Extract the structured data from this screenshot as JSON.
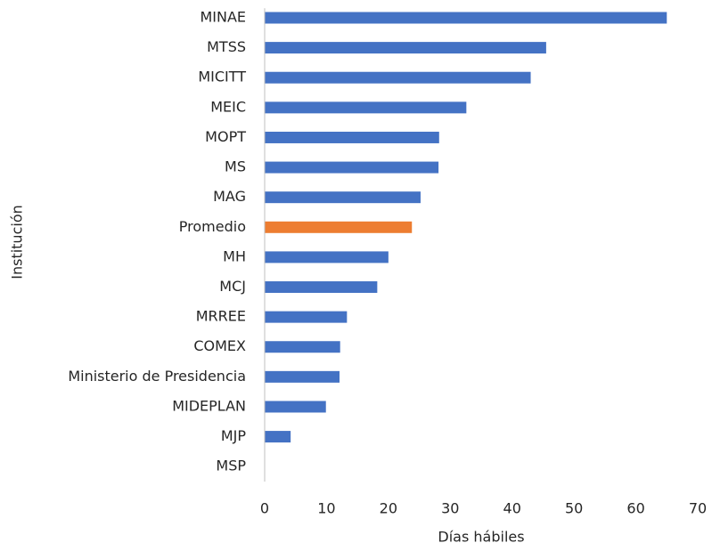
{
  "chart_data": {
    "type": "barh",
    "xlabel": "Días hábiles",
    "ylabel": "Institución",
    "categories": [
      "MINAE",
      "MTSS",
      "MICITT",
      "MEIC",
      "MOPT",
      "MS",
      "MAG",
      "Promedio",
      "MH",
      "MCJ",
      "MRREE",
      "COMEX",
      "Ministerio de Presidencia",
      "MIDEPLAN",
      "MJP",
      "MSP"
    ],
    "values": [
      65.0,
      45.5,
      43.0,
      32.6,
      28.2,
      28.1,
      25.2,
      23.8,
      20.0,
      18.2,
      13.3,
      12.2,
      12.1,
      9.9,
      4.2,
      0
    ],
    "colors": [
      "#4472c4",
      "#4472c4",
      "#4472c4",
      "#4472c4",
      "#4472c4",
      "#4472c4",
      "#4472c4",
      "#ed7d31",
      "#4472c4",
      "#4472c4",
      "#4472c4",
      "#4472c4",
      "#4472c4",
      "#4472c4",
      "#4472c4",
      "#4472c4"
    ],
    "xlim": [
      0,
      70
    ],
    "xticks": [
      0,
      10,
      20,
      30,
      40,
      50,
      60,
      70
    ],
    "grid": false
  }
}
